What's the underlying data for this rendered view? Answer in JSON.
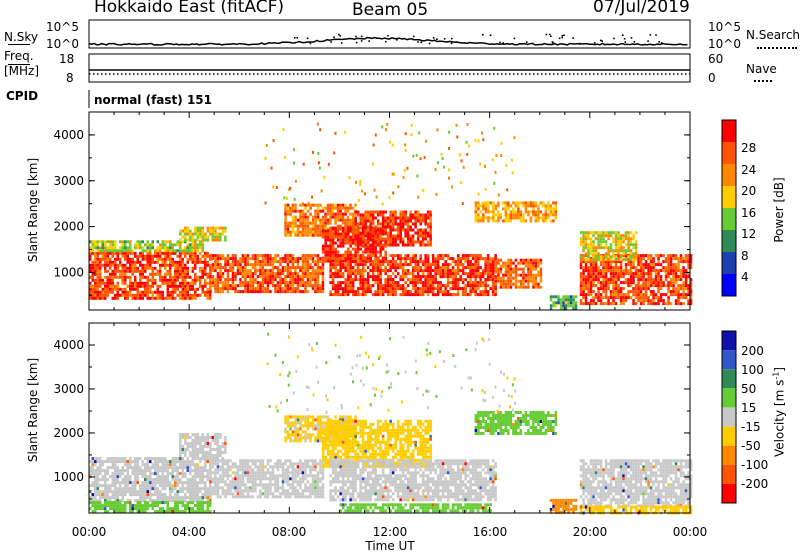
{
  "header": {
    "title": "Hokkaido East (fitACF)",
    "beam": "Beam 05",
    "date": "07/Jul/2019"
  },
  "noise_panel": {
    "left_label": "N.Sky",
    "right_label": "N.Search",
    "left_ticks": [
      "10^5",
      "10^0"
    ],
    "right_ticks": [
      "10^5",
      "10^0"
    ]
  },
  "freq_panel": {
    "left_label_line1": "Freq.",
    "left_label_line2": "[MHz]",
    "left_ticks": [
      "18",
      "8"
    ],
    "right_label": "Nave",
    "right_ticks": [
      "60",
      "0"
    ]
  },
  "cpid": {
    "label": "CPID",
    "value": "normal (fast) 151"
  },
  "axes": {
    "x_ticks": [
      "00:00",
      "04:00",
      "08:00",
      "12:00",
      "16:00",
      "20:00",
      "00:00"
    ],
    "x_label": "Time UT",
    "y_label": "Slant Range [km]",
    "y_ticks": [
      "1000",
      "2000",
      "3000",
      "4000"
    ]
  },
  "power_colorbar": {
    "label": "Power [dB]",
    "ticks": [
      "4",
      "8",
      "12",
      "16",
      "20",
      "24",
      "28"
    ],
    "colors": [
      "#0000ff",
      "#1e3fb0",
      "#2e8b57",
      "#66cc33",
      "#ffcc00",
      "#ff8800",
      "#ff5500",
      "#ff0000"
    ]
  },
  "velocity_colorbar": {
    "label_main": "Velocity [m s",
    "label_sup": "-1",
    "label_end": "]",
    "ticks": [
      "200",
      "100",
      "50",
      "15",
      "-15",
      "-50",
      "-100",
      "-200"
    ],
    "colors": [
      "#1010aa",
      "#3355cc",
      "#2e8b57",
      "#66cc33",
      "#c8c8c8",
      "#ffcc00",
      "#ff8800",
      "#ff5500",
      "#ff0000"
    ]
  },
  "chart_data": [
    {
      "type": "heatmap",
      "title": "Power",
      "xlabel": "Time UT",
      "ylabel": "Slant Range [km]",
      "xlim_hours": [
        0,
        24
      ],
      "ylim_km": [
        180,
        4500
      ],
      "color_label": "Power [dB]",
      "color_range": [
        0,
        32
      ],
      "regions": [
        {
          "t0": 0,
          "t1": 4.8,
          "r0": 450,
          "r1": 1450,
          "value": 27
        },
        {
          "t0": 0,
          "t1": 4.5,
          "r0": 1450,
          "r1": 1700,
          "value": 16
        },
        {
          "t0": 3.6,
          "t1": 5.4,
          "r0": 1700,
          "r1": 2000,
          "value": 17
        },
        {
          "t0": 4.8,
          "t1": 9.3,
          "r0": 550,
          "r1": 1400,
          "value": 26
        },
        {
          "t0": 7.8,
          "t1": 10.6,
          "r0": 1800,
          "r1": 2500,
          "value": 24
        },
        {
          "t0": 9.3,
          "t1": 11.8,
          "r0": 1250,
          "r1": 2000,
          "value": 29
        },
        {
          "t0": 10.6,
          "t1": 13.6,
          "r0": 1600,
          "r1": 2350,
          "value": 28
        },
        {
          "t0": 9.6,
          "t1": 16.2,
          "r0": 500,
          "r1": 1400,
          "value": 28
        },
        {
          "t0": 15.4,
          "t1": 18.6,
          "r0": 2100,
          "r1": 2550,
          "value": 21
        },
        {
          "t0": 16.2,
          "t1": 18.0,
          "r0": 700,
          "r1": 1300,
          "value": 25
        },
        {
          "t0": 18.4,
          "t1": 19.4,
          "r0": 200,
          "r1": 500,
          "value": 12
        },
        {
          "t0": 19.6,
          "t1": 24,
          "r0": 300,
          "r1": 1400,
          "value": 27
        },
        {
          "t0": 19.6,
          "t1": 21.8,
          "r0": 1300,
          "r1": 1900,
          "value": 18
        }
      ]
    },
    {
      "type": "heatmap",
      "title": "Velocity",
      "xlabel": "Time UT",
      "ylabel": "Slant Range [km]",
      "xlim_hours": [
        0,
        24
      ],
      "ylim_km": [
        180,
        4500
      ],
      "color_label": "Velocity [m s-1]",
      "color_range": [
        -250,
        250
      ],
      "regions": [
        {
          "t0": 0,
          "t1": 4.8,
          "r0": 450,
          "r1": 1450,
          "value": 0
        },
        {
          "t0": 0,
          "t1": 4.8,
          "r0": 200,
          "r1": 450,
          "value": 30
        },
        {
          "t0": 3.6,
          "t1": 5.4,
          "r0": 1450,
          "r1": 2000,
          "value": 0
        },
        {
          "t0": 4.8,
          "t1": 9.3,
          "r0": 550,
          "r1": 1400,
          "value": 0
        },
        {
          "t0": 7.8,
          "t1": 10.6,
          "r0": 1800,
          "r1": 2400,
          "value": -20
        },
        {
          "t0": 9.3,
          "t1": 13.6,
          "r0": 1250,
          "r1": 2300,
          "value": -30
        },
        {
          "t0": 9.6,
          "t1": 16.2,
          "r0": 500,
          "r1": 1400,
          "value": 0
        },
        {
          "t0": 10.0,
          "t1": 16.0,
          "r0": 200,
          "r1": 400,
          "value": 40
        },
        {
          "t0": 15.4,
          "t1": 18.6,
          "r0": 2000,
          "r1": 2500,
          "value": 25
        },
        {
          "t0": 18.4,
          "t1": 19.4,
          "r0": 200,
          "r1": 500,
          "value": -60
        },
        {
          "t0": 19.6,
          "t1": 24,
          "r0": 350,
          "r1": 1400,
          "value": 0
        },
        {
          "t0": 19.6,
          "t1": 24,
          "r0": 200,
          "r1": 350,
          "value": -40
        }
      ]
    }
  ]
}
